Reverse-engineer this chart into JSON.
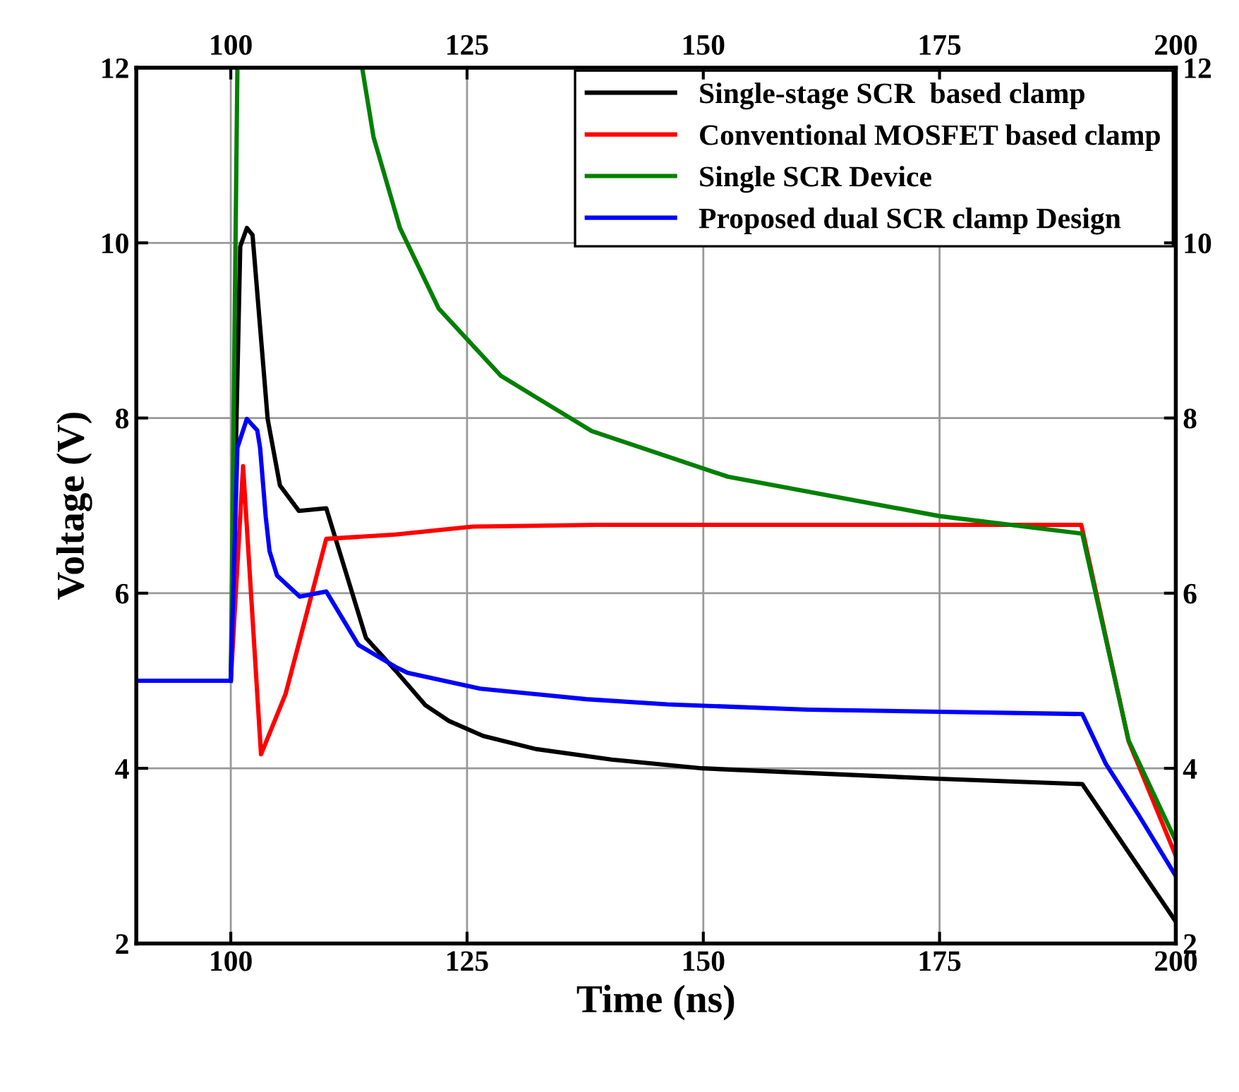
{
  "chart_data": {
    "type": "line",
    "xlabel": "Time (ns)",
    "ylabel": "Voltage (V)",
    "xlim": [
      90,
      200
    ],
    "xticks": [
      100,
      125,
      150,
      175,
      200
    ],
    "x2lim": [
      90,
      200
    ],
    "x2ticks": [
      100,
      125,
      150,
      175,
      200
    ],
    "ylim": [
      2,
      12
    ],
    "yticks": [
      2,
      4,
      6,
      8,
      10,
      12
    ],
    "y2lim": [
      2,
      12
    ],
    "y2ticks": [
      2,
      4,
      6,
      8,
      10,
      12
    ],
    "grid": true,
    "legend": "top right",
    "marker": "none",
    "line_style": "solid",
    "series": [
      {
        "name": "Single-stage SCR  based clamp",
        "color": "#000000",
        "x": [
          100,
          101.0,
          101.7,
          102.3,
          103.9,
          105.2,
          107.2,
          110.1,
          114.3,
          117.4,
          120.6,
          123.1,
          126.7,
          132.3,
          140.3,
          149.9,
          175.0,
          190.1,
          200
        ],
        "values": [
          5,
          9.96,
          10.17,
          10.09,
          7.99,
          7.23,
          6.94,
          6.97,
          5.49,
          5.12,
          4.72,
          4.54,
          4.37,
          4.22,
          4.1,
          4.0,
          3.88,
          3.82,
          2.25
        ]
      },
      {
        "name": "Conventional MOSFET based clamp",
        "color": "#ff0000",
        "x": [
          100,
          101.3,
          103.2,
          105.8,
          110.1,
          117.4,
          125.6,
          138.7,
          190.0,
          195.0,
          200
        ],
        "values": [
          5,
          7.45,
          4.16,
          4.85,
          6.62,
          6.67,
          6.76,
          6.78,
          6.78,
          4.31,
          3.0
        ]
      },
      {
        "name": "Single SCR Device",
        "color": "#008000",
        "x": [
          100,
          100.7,
          107,
          113.9,
          115.1,
          117.9,
          122.0,
          128.6,
          138.2,
          152.6,
          175.0,
          190.1,
          195.0,
          200
        ],
        "values": [
          5,
          12,
          null,
          12,
          11.21,
          10.17,
          9.25,
          8.48,
          7.85,
          7.33,
          6.88,
          6.68,
          4.32,
          3.17
        ]
      },
      {
        "name": "Proposed dual SCR clamp Design",
        "color": "#0000ff",
        "x": [
          90,
          100,
          100.7,
          101.7,
          102.2,
          102.8,
          103.1,
          103.7,
          104.1,
          104.9,
          107.3,
          110.1,
          113.5,
          117.4,
          118.7,
          126.4,
          137.6,
          146.2,
          161.1,
          190.1,
          192.6,
          196.1,
          200
        ],
        "values": [
          5,
          5,
          7.66,
          7.99,
          7.93,
          7.86,
          7.66,
          6.87,
          6.48,
          6.2,
          5.96,
          6.02,
          5.41,
          5.16,
          5.09,
          4.91,
          4.79,
          4.73,
          4.67,
          4.62,
          4.05,
          3.46,
          2.77
        ]
      }
    ]
  }
}
